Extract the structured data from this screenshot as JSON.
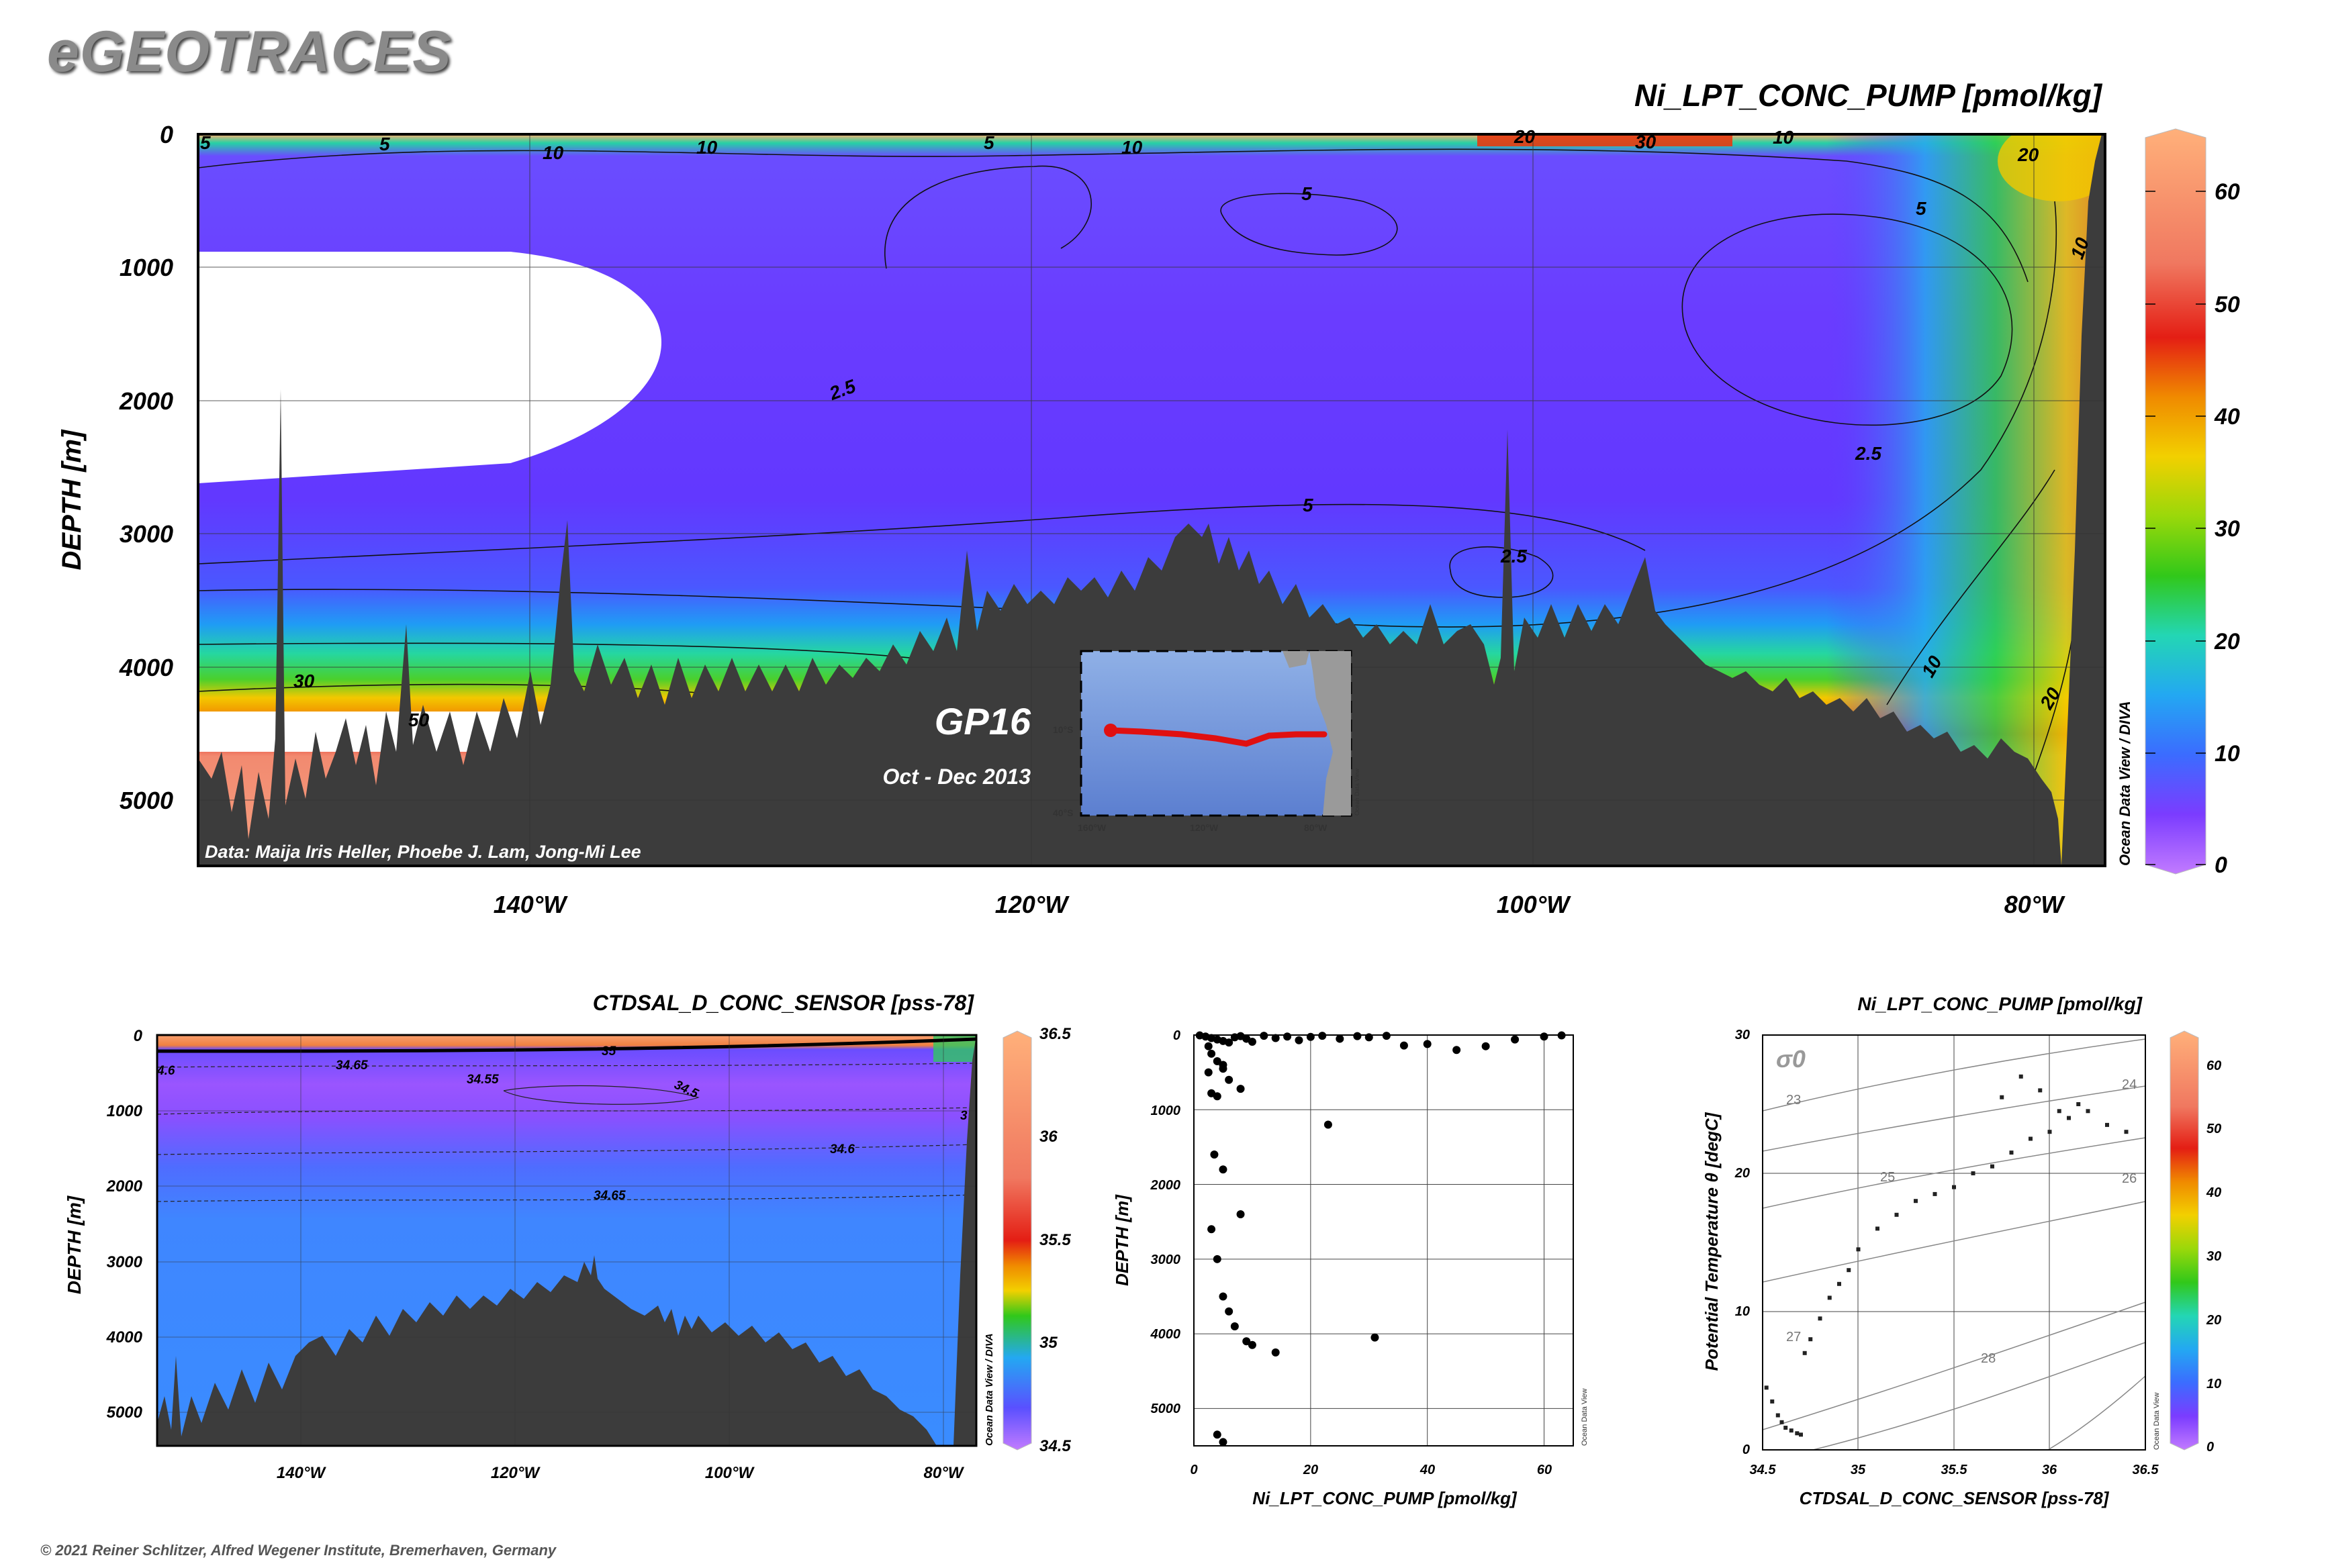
{
  "logo": "eGEOTRACES",
  "copyright": "© 2021 Reiner Schlitzer, Alfred Wegener Institute, Bremerhaven, Germany",
  "section": {
    "title": "Ni_LPT_CONC_PUMP [pmol/kg]",
    "ylabel": "DEPTH [m]",
    "y_ticks": [
      "0",
      "1000",
      "2000",
      "3000",
      "4000",
      "5000"
    ],
    "x_ticks": [
      "140°W",
      "120°W",
      "100°W",
      "80°W"
    ],
    "colorbar_ticks": [
      "0",
      "10",
      "20",
      "30",
      "40",
      "50",
      "60"
    ],
    "cruise": "GP16",
    "period": "Oct - Dec 2013",
    "credit": "Data: Maija Iris Heller, Phoebe J. Lam, Jong-Mi Lee",
    "odv_note": "Ocean Data View / DIVA",
    "contour_labels": [
      "5",
      "10",
      "10",
      "5",
      "10",
      "20",
      "30",
      "10",
      "20",
      "5",
      "10",
      "5",
      "2.5",
      "2.5",
      "5",
      "2.5",
      "10",
      "20",
      "30",
      "50",
      "5"
    ]
  },
  "inset_map": {
    "lat_ticks": [
      "10°S",
      "40°S"
    ],
    "lon_ticks": [
      "160°W",
      "120°W",
      "80°W"
    ],
    "note": "Ocean Data View"
  },
  "salinity_section": {
    "title": "CTDSAL_D_CONC_SENSOR [pss-78]",
    "ylabel": "DEPTH [m]",
    "y_ticks": [
      "0",
      "1000",
      "2000",
      "3000",
      "4000",
      "5000"
    ],
    "x_ticks": [
      "140°W",
      "120°W",
      "100°W",
      "80°W"
    ],
    "colorbar_ticks": [
      "34.5",
      "35",
      "35.5",
      "36",
      "36.5"
    ],
    "odv_note": "Ocean Data View / DIVA",
    "contour_labels": [
      "34.65",
      "34.55",
      "34.5",
      "35",
      "34.6",
      "34.65",
      "3",
      "4.6"
    ]
  },
  "scatter": {
    "xlabel": "Ni_LPT_CONC_PUMP [pmol/kg]",
    "ylabel": "DEPTH [m]",
    "x_ticks": [
      "0",
      "20",
      "40",
      "60"
    ],
    "y_ticks": [
      "0",
      "1000",
      "2000",
      "3000",
      "4000",
      "5000"
    ],
    "odv_note": "Ocean Data View"
  },
  "ts": {
    "title": "Ni_LPT_CONC_PUMP [pmol/kg]",
    "xlabel": "CTDSAL_D_CONC_SENSOR [pss-78]",
    "ylabel": "Potential Temperature θ [degC]",
    "x_ticks": [
      "34.5",
      "35",
      "35.5",
      "36",
      "36.5"
    ],
    "y_ticks": [
      "0",
      "10",
      "20",
      "30"
    ],
    "colorbar_ticks": [
      "0",
      "10",
      "20",
      "30",
      "40",
      "50",
      "60"
    ],
    "sigma_label": "σ0",
    "density_labels": [
      "23",
      "24",
      "25",
      "26",
      "27",
      "28"
    ],
    "odv_note": "Ocean Data View"
  },
  "chart_data": [
    {
      "type": "scatter",
      "title": "Ni_LPT_CONC_PUMP [pmol/kg]",
      "xlabel": "Ni_LPT_CONC_PUMP [pmol/kg]",
      "ylabel": "DEPTH [m]",
      "xlim": [
        0,
        65
      ],
      "ylim": [
        5500,
        0
      ],
      "x": [
        1,
        2,
        3,
        4,
        5,
        6,
        7,
        8,
        9,
        10,
        12,
        14,
        16,
        18,
        20,
        22,
        25,
        28,
        30,
        33,
        36,
        40,
        45,
        50,
        55,
        60,
        63,
        2.5,
        3,
        4,
        5,
        6,
        8,
        3,
        4,
        5,
        2.5,
        3.5,
        5,
        8,
        23,
        3,
        4,
        5,
        6,
        7,
        9,
        10,
        14,
        31,
        4,
        5
      ],
      "y": [
        5,
        20,
        40,
        60,
        80,
        100,
        30,
        15,
        50,
        90,
        10,
        40,
        20,
        70,
        25,
        10,
        50,
        15,
        30,
        10,
        140,
        120,
        200,
        150,
        60,
        20,
        5,
        150,
        250,
        350,
        450,
        600,
        720,
        780,
        820,
        400,
        500,
        1600,
        1800,
        2400,
        1200,
        2600,
        3000,
        3500,
        3700,
        3900,
        4100,
        4150,
        4250,
        4050,
        5350,
        5450
      ]
    },
    {
      "type": "scatter",
      "title": "Ni_LPT_CONC_PUMP [pmol/kg]",
      "xlabel": "CTDSAL_D_CONC_SENSOR [pss-78]",
      "ylabel": "Potential Temperature θ [degC]",
      "xlim": [
        34.5,
        36.5
      ],
      "ylim": [
        0,
        30
      ],
      "x": [
        34.52,
        34.55,
        34.58,
        34.6,
        34.62,
        34.65,
        34.68,
        34.7,
        34.72,
        34.75,
        34.8,
        34.85,
        34.9,
        34.95,
        35.0,
        35.1,
        35.2,
        35.3,
        35.4,
        35.5,
        35.6,
        35.7,
        35.8,
        35.9,
        36.0,
        36.1,
        36.2,
        36.3,
        36.4,
        35.75,
        35.85,
        35.95,
        36.05,
        36.15
      ],
      "y": [
        4.5,
        3.5,
        2.5,
        2.0,
        1.6,
        1.4,
        1.2,
        1.1,
        7.0,
        8.0,
        9.5,
        11.0,
        12.0,
        13.0,
        14.5,
        16.0,
        17.0,
        18.0,
        18.5,
        19.0,
        20.0,
        20.5,
        21.5,
        22.5,
        23.0,
        24.0,
        24.5,
        23.5,
        23.0,
        25.5,
        27.0,
        26.0,
        24.5,
        25.0
      ],
      "colorbar_range": [
        0,
        63
      ]
    }
  ]
}
